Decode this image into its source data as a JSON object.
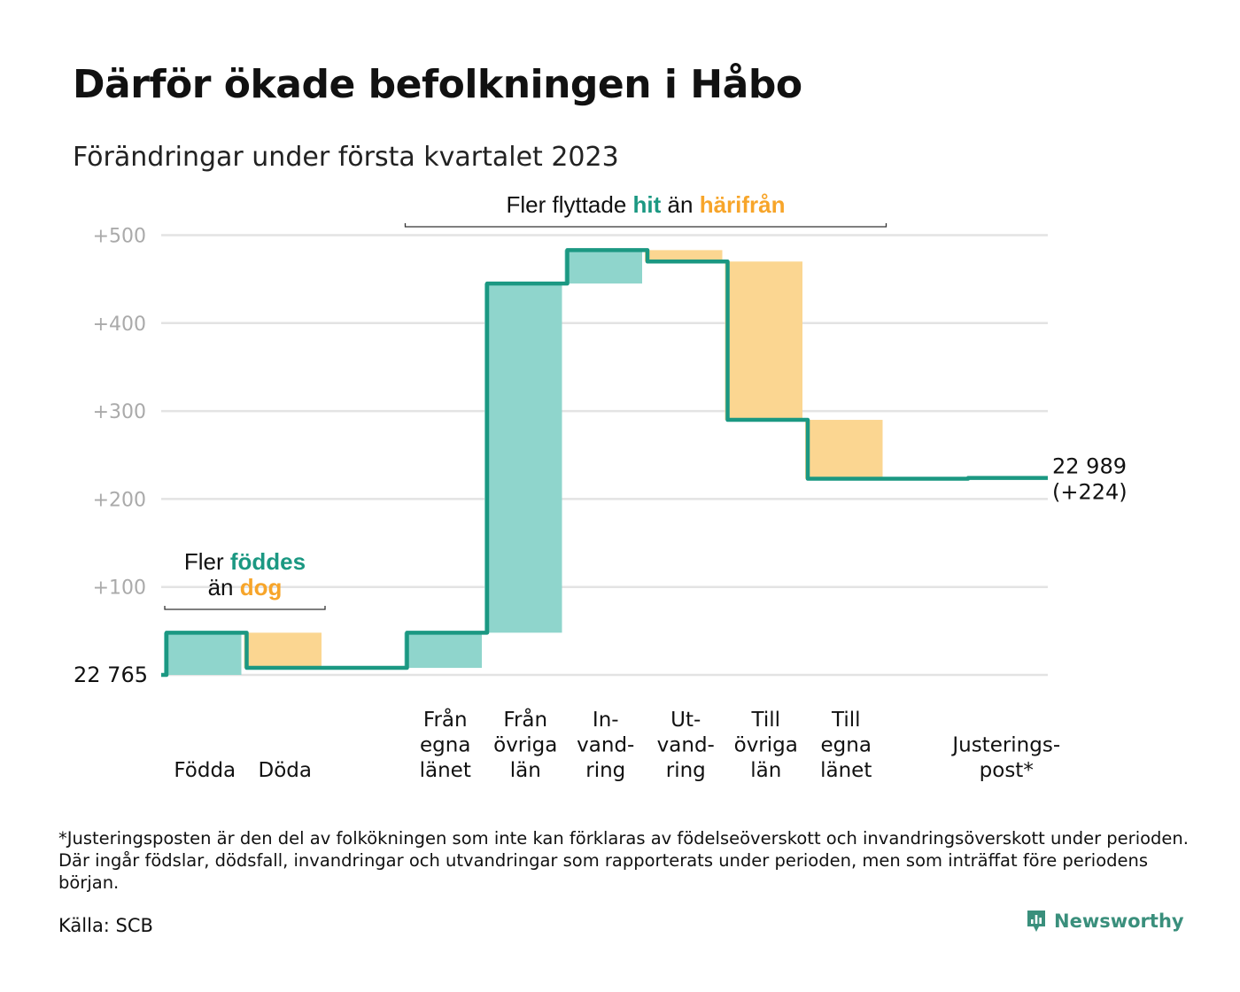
{
  "title": "Därför ökade befolkningen i Håbo",
  "subtitle": "Förändringar under första kvartalet 2023",
  "colors": {
    "teal": "#1b9882",
    "teal_light": "#8fd5cc",
    "orange": "#f7a52a",
    "orange_light": "#fbd691",
    "grid": "#e3e3e3",
    "axis_text": "#aaaaaa"
  },
  "chart_data": {
    "type": "waterfall",
    "title": "Därför ökade befolkningen i Håbo",
    "subtitle": "Förändringar under första kvartalet 2023",
    "start_label": "22 765",
    "start_value": 22765,
    "end_label_lines": [
      "22 989",
      "(+224)"
    ],
    "end_value": 22989,
    "ylim": [
      0,
      500
    ],
    "yticks": [
      {
        "value": 100,
        "label": "+100"
      },
      {
        "value": 200,
        "label": "+200"
      },
      {
        "value": 300,
        "label": "+300"
      },
      {
        "value": 400,
        "label": "+400"
      },
      {
        "value": 500,
        "label": "+500"
      }
    ],
    "grid": true,
    "steps": [
      {
        "label_lines": [
          "Födda"
        ],
        "change": 48
      },
      {
        "label_lines": [
          "Döda"
        ],
        "change": -40
      },
      {
        "label_lines": [],
        "change": 0
      },
      {
        "label_lines": [
          "Från",
          "egna",
          "länet"
        ],
        "change": 40
      },
      {
        "label_lines": [
          "Från",
          "övriga",
          "län"
        ],
        "change": 397
      },
      {
        "label_lines": [
          "In-",
          "vand-",
          "ring"
        ],
        "change": 38
      },
      {
        "label_lines": [
          "Ut-",
          "vand-",
          "ring"
        ],
        "change": -13
      },
      {
        "label_lines": [
          "Till",
          "övriga",
          "län"
        ],
        "change": -180
      },
      {
        "label_lines": [
          "Till",
          "egna",
          "länet"
        ],
        "change": -67
      },
      {
        "label_lines": [],
        "change": 0
      },
      {
        "label_lines": [
          "Justerings-",
          "post*"
        ],
        "change": 1
      }
    ],
    "annotations": [
      {
        "from_step": 0,
        "to_step": 1,
        "parts": [
          [
            {
              "text": "Fler ",
              "style": "plain"
            },
            {
              "text": "föddes",
              "style": "in"
            }
          ],
          [
            {
              "text": "än ",
              "style": "plain"
            },
            {
              "text": "dog",
              "style": "out"
            }
          ]
        ]
      },
      {
        "from_step": 3,
        "to_step": 8,
        "parts": [
          [
            {
              "text": "Fler flyttade ",
              "style": "plain"
            },
            {
              "text": "hit",
              "style": "in"
            },
            {
              "text": " än ",
              "style": "plain"
            },
            {
              "text": "härifrån",
              "style": "out"
            }
          ]
        ]
      }
    ]
  },
  "footnote": "*Justeringsposten är den del av folkökningen som inte kan förklaras av födelseöverskott och invandringsöverskott under perioden. Där ingår födslar, dödsfall, invandringar och utvandringar som rapporterats under perioden, men som inträffat före periodens början.",
  "source": "Källa: SCB",
  "brand": {
    "name": "Newsworthy",
    "icon": "newsworthy-logo-icon"
  }
}
